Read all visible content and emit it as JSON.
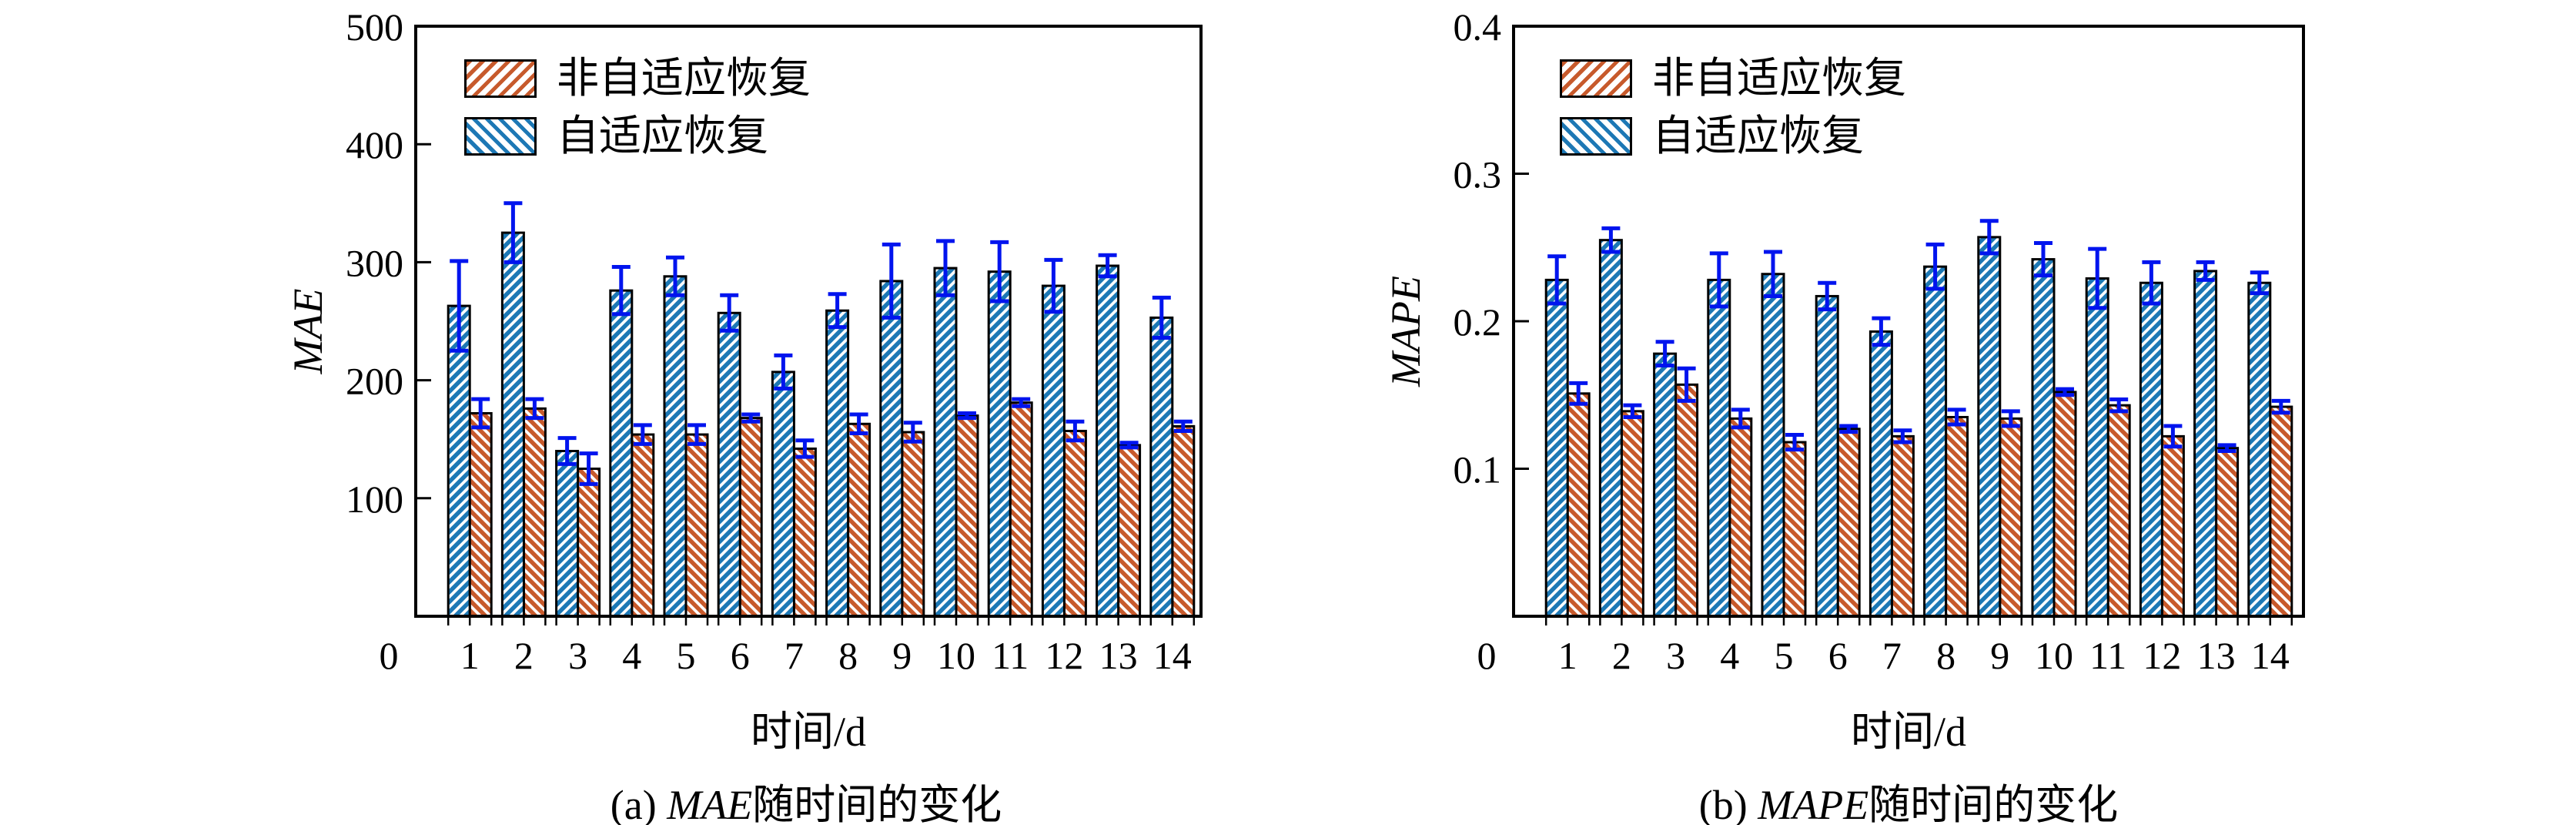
{
  "figure": {
    "background": "#ffffff",
    "frame_color": "#000000",
    "error_bar_color": "#0014ee",
    "adaptive_color": "#1d78b5",
    "nonadaptive_color": "#c75a2c"
  },
  "chart_data": [
    {
      "type": "bar",
      "caption": {
        "prefix": "(a)",
        "metric": "MAE",
        "suffix": "随时间的变化"
      },
      "xlabel": "时间/d",
      "ylabel": "MAE",
      "ylim": [
        0,
        500
      ],
      "grid": "off",
      "legend_position": "upper-left",
      "yticks": [
        {
          "v": 0,
          "label": "0"
        },
        {
          "v": 100,
          "label": "100"
        },
        {
          "v": 200,
          "label": "200"
        },
        {
          "v": 300,
          "label": "300"
        },
        {
          "v": 400,
          "label": "400"
        },
        {
          "v": 500,
          "label": "500"
        }
      ],
      "categories": [
        "1",
        "2",
        "3",
        "4",
        "5",
        "6",
        "7",
        "8",
        "9",
        "10",
        "11",
        "12",
        "13",
        "14"
      ],
      "series": [
        {
          "name": "非自适应恢复",
          "side": "right",
          "color": "#c75a2c",
          "bar_hatch": "\\",
          "values": [
            172,
            176,
            125,
            154,
            154,
            168,
            142,
            163,
            156,
            170,
            181,
            157,
            145,
            161
          ],
          "errors": [
            12,
            8,
            13,
            8,
            8,
            3,
            7,
            8,
            8,
            2,
            3,
            8,
            2,
            4
          ]
        },
        {
          "name": "自适应恢复",
          "side": "left",
          "color": "#1d78b5",
          "bar_hatch": "/",
          "values": [
            263,
            325,
            140,
            276,
            288,
            257,
            207,
            259,
            284,
            295,
            292,
            280,
            297,
            253
          ],
          "errors": [
            38,
            25,
            11,
            20,
            16,
            15,
            14,
            14,
            31,
            23,
            25,
            22,
            9,
            17
          ]
        }
      ],
      "legend": [
        {
          "label": "非自适应恢复",
          "color": "#c75a2c",
          "hatch": "/"
        },
        {
          "label": "自适应恢复",
          "color": "#1d78b5",
          "hatch": "\\"
        }
      ]
    },
    {
      "type": "bar",
      "caption": {
        "prefix": "(b)",
        "metric": "MAPE",
        "suffix": "随时间的变化"
      },
      "xlabel": "时间/d",
      "ylabel": "MAPE",
      "ylim": [
        0,
        0.4
      ],
      "grid": "off",
      "legend_position": "upper-left",
      "yticks": [
        {
          "v": 0,
          "label": "0"
        },
        {
          "v": 0.1,
          "label": "0.1"
        },
        {
          "v": 0.2,
          "label": "0.2"
        },
        {
          "v": 0.3,
          "label": "0.3"
        },
        {
          "v": 0.4,
          "label": "0.4"
        }
      ],
      "categories": [
        "1",
        "2",
        "3",
        "4",
        "5",
        "6",
        "7",
        "8",
        "9",
        "10",
        "11",
        "12",
        "13",
        "14"
      ],
      "series": [
        {
          "name": "非自适应恢复",
          "side": "right",
          "color": "#c75a2c",
          "bar_hatch": "\\",
          "values": [
            0.151,
            0.139,
            0.157,
            0.134,
            0.118,
            0.127,
            0.122,
            0.135,
            0.134,
            0.152,
            0.143,
            0.122,
            0.114,
            0.142
          ],
          "errors": [
            0.007,
            0.004,
            0.011,
            0.006,
            0.005,
            0.002,
            0.004,
            0.005,
            0.005,
            0.002,
            0.004,
            0.007,
            0.002,
            0.004
          ]
        },
        {
          "name": "自适应恢复",
          "side": "left",
          "color": "#1d78b5",
          "bar_hatch": "/",
          "values": [
            0.228,
            0.255,
            0.178,
            0.228,
            0.232,
            0.217,
            0.193,
            0.237,
            0.257,
            0.242,
            0.229,
            0.226,
            0.234,
            0.226
          ],
          "errors": [
            0.016,
            0.008,
            0.008,
            0.018,
            0.015,
            0.009,
            0.009,
            0.015,
            0.011,
            0.011,
            0.02,
            0.014,
            0.006,
            0.007
          ]
        }
      ],
      "legend": [
        {
          "label": "非自适应恢复",
          "color": "#c75a2c",
          "hatch": "/"
        },
        {
          "label": "自适应恢复",
          "color": "#1d78b5",
          "hatch": "\\"
        }
      ]
    }
  ]
}
